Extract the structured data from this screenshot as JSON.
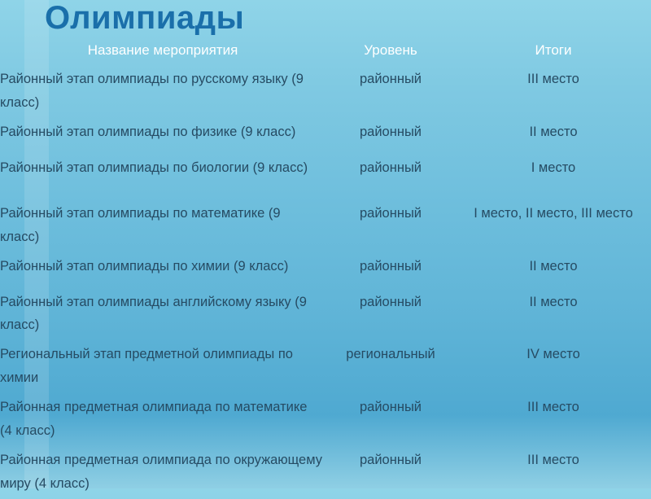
{
  "title": "Олимпиады",
  "columns": [
    "Название мероприятия",
    "Уровень",
    "Итоги"
  ],
  "rows": [
    {
      "name": "Районный этап олимпиады по русскому языку (9 класс)",
      "level": "районный",
      "result": "III место",
      "lines": 2
    },
    {
      "name": "Районный этап олимпиады по физике (9 класс)",
      "level": "районный",
      "result": "II место",
      "lines": 1
    },
    {
      "name": "Районный этап олимпиады по биологии (9 класс)",
      "level": "районный",
      "result": "I место",
      "lines": 2
    },
    {
      "name": "Районный этап олимпиады по математике (9 класс)",
      "level": "районный",
      "result": "I место,  II место, III место",
      "lines": 2
    },
    {
      "name": "Районный этап олимпиады по химии (9 класс)",
      "level": "районный",
      "result": "II место",
      "lines": 1
    },
    {
      "name": "Районный этап олимпиады английскому языку (9 класс)",
      "level": "районный",
      "result": "II место",
      "lines": 2
    },
    {
      "name": "Региональный этап предметной олимпиады по химии",
      "level": "региональный",
      "result": "IV место",
      "lines": 2
    },
    {
      "name": "Районная предметная олимпиада по математике (4 класс)",
      "level": "районный",
      "result": "III место",
      "lines": 2
    },
    {
      "name": "Районная предметная олимпиада по окружающему миру (4 класс)",
      "level": "районный",
      "result": "III место",
      "lines": 2
    }
  ],
  "colors": {
    "title": "#1a6faa",
    "header_text": "#ffffff",
    "body_text": "#264b63",
    "gradient_top": "#8fd4e8",
    "gradient_bottom": "#4fa9d1"
  },
  "fontsize": {
    "title": 40,
    "header": 17,
    "body": 16.5
  }
}
